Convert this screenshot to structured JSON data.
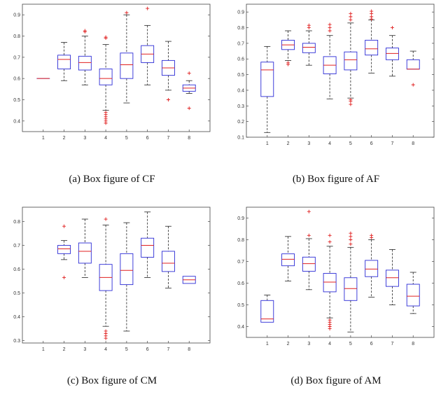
{
  "figure": {
    "captions": [
      "(a) Box figure of CF",
      "(b) Box figure of AF",
      "(c) Box figure of CM",
      "(d) Box figure of AM"
    ]
  },
  "colors": {
    "box": "#2b2bd6",
    "median": "#e02020",
    "outlier": "#e02020",
    "whisker": "#222222",
    "frame": "#444444"
  },
  "chart_data": [
    {
      "type": "box",
      "title": "(a) Box figure of CF",
      "categories": [
        "1",
        "2",
        "3",
        "4",
        "5",
        "6",
        "7",
        "8"
      ],
      "ylim": [
        0.35,
        0.95
      ],
      "yticks": [
        "0.4",
        "0.5",
        "0.6",
        "0.7",
        "0.8",
        "0.9"
      ],
      "boxes": [
        {
          "min": 0.6,
          "q1": 0.6,
          "median": 0.6,
          "q3": 0.6,
          "max": 0.6,
          "outliers": []
        },
        {
          "min": 0.59,
          "q1": 0.645,
          "median": 0.69,
          "q3": 0.71,
          "max": 0.77,
          "outliers": []
        },
        {
          "min": 0.57,
          "q1": 0.64,
          "median": 0.675,
          "q3": 0.705,
          "max": 0.8,
          "outliers": [
            0.82,
            0.825
          ]
        },
        {
          "min": 0.45,
          "q1": 0.57,
          "median": 0.6,
          "q3": 0.645,
          "max": 0.76,
          "outliers": [
            0.79,
            0.795,
            0.44,
            0.43,
            0.42,
            0.41,
            0.4,
            0.39
          ]
        },
        {
          "min": 0.485,
          "q1": 0.6,
          "median": 0.665,
          "q3": 0.72,
          "max": 0.9,
          "outliers": [
            0.91
          ]
        },
        {
          "min": 0.57,
          "q1": 0.675,
          "median": 0.715,
          "q3": 0.755,
          "max": 0.85,
          "outliers": [
            0.93
          ]
        },
        {
          "min": 0.545,
          "q1": 0.615,
          "median": 0.65,
          "q3": 0.685,
          "max": 0.775,
          "outliers": [
            0.5
          ]
        },
        {
          "min": 0.53,
          "q1": 0.54,
          "median": 0.555,
          "q3": 0.57,
          "max": 0.59,
          "outliers": [
            0.625,
            0.46
          ]
        }
      ]
    },
    {
      "type": "box",
      "title": "(b) Box figure of AF",
      "categories": [
        "1",
        "2",
        "3",
        "4",
        "5",
        "6",
        "7",
        "8"
      ],
      "ylim": [
        0.1,
        0.95
      ],
      "yticks": [
        "0.1",
        "0.2",
        "0.3",
        "0.4",
        "0.5",
        "0.6",
        "0.7",
        "0.8",
        "0.9"
      ],
      "boxes": [
        {
          "min": 0.13,
          "q1": 0.36,
          "median": 0.53,
          "q3": 0.58,
          "max": 0.68,
          "outliers": []
        },
        {
          "min": 0.59,
          "q1": 0.66,
          "median": 0.69,
          "q3": 0.72,
          "max": 0.78,
          "outliers": [
            0.575,
            0.565
          ]
        },
        {
          "min": 0.56,
          "q1": 0.64,
          "median": 0.675,
          "q3": 0.7,
          "max": 0.78,
          "outliers": [
            0.8,
            0.815
          ]
        },
        {
          "min": 0.345,
          "q1": 0.505,
          "median": 0.56,
          "q3": 0.615,
          "max": 0.75,
          "outliers": [
            0.78,
            0.8,
            0.82
          ]
        },
        {
          "min": 0.35,
          "q1": 0.53,
          "median": 0.595,
          "q3": 0.645,
          "max": 0.83,
          "outliers": [
            0.85,
            0.87,
            0.89,
            0.34,
            0.33,
            0.31
          ]
        },
        {
          "min": 0.51,
          "q1": 0.625,
          "median": 0.665,
          "q3": 0.72,
          "max": 0.85,
          "outliers": [
            0.855,
            0.87,
            0.89,
            0.905
          ]
        },
        {
          "min": 0.49,
          "q1": 0.595,
          "median": 0.635,
          "q3": 0.67,
          "max": 0.75,
          "outliers": [
            0.8
          ]
        },
        {
          "min": 0.535,
          "q1": 0.535,
          "median": 0.535,
          "q3": 0.595,
          "max": 0.65,
          "outliers": [
            0.435
          ]
        }
      ]
    },
    {
      "type": "box",
      "title": "(c) Box figure of CM",
      "categories": [
        "1",
        "2",
        "3",
        "4",
        "5",
        "6",
        "7",
        "8"
      ],
      "ylim": [
        0.29,
        0.86
      ],
      "yticks": [
        "0.3",
        "0.4",
        "0.5",
        "0.6",
        "0.7",
        "0.8"
      ],
      "boxes": [
        {
          "min": null,
          "q1": null,
          "median": null,
          "q3": null,
          "max": null,
          "outliers": []
        },
        {
          "min": 0.64,
          "q1": 0.665,
          "median": 0.685,
          "q3": 0.7,
          "max": 0.72,
          "outliers": [
            0.78,
            0.565
          ]
        },
        {
          "min": 0.565,
          "q1": 0.625,
          "median": 0.675,
          "q3": 0.71,
          "max": 0.81,
          "outliers": []
        },
        {
          "min": 0.36,
          "q1": 0.51,
          "median": 0.565,
          "q3": 0.62,
          "max": 0.785,
          "outliers": [
            0.81,
            0.34,
            0.33,
            0.32,
            0.31
          ]
        },
        {
          "min": 0.34,
          "q1": 0.535,
          "median": 0.595,
          "q3": 0.665,
          "max": 0.795,
          "outliers": []
        },
        {
          "min": 0.565,
          "q1": 0.65,
          "median": 0.7,
          "q3": 0.73,
          "max": 0.84,
          "outliers": []
        },
        {
          "min": 0.52,
          "q1": 0.59,
          "median": 0.625,
          "q3": 0.675,
          "max": 0.78,
          "outliers": []
        },
        {
          "min": 0.54,
          "q1": 0.54,
          "median": 0.555,
          "q3": 0.57,
          "max": 0.57,
          "outliers": []
        }
      ]
    },
    {
      "type": "box",
      "title": "(d) Box figure of AM",
      "categories": [
        "1",
        "2",
        "3",
        "4",
        "5",
        "6",
        "7",
        "8"
      ],
      "ylim": [
        0.35,
        0.95
      ],
      "yticks": [
        "0.4",
        "0.5",
        "0.6",
        "0.7",
        "0.8",
        "0.9"
      ],
      "boxes": [
        {
          "min": 0.42,
          "q1": 0.42,
          "median": 0.435,
          "q3": 0.52,
          "max": 0.545,
          "outliers": []
        },
        {
          "min": 0.61,
          "q1": 0.68,
          "median": 0.71,
          "q3": 0.735,
          "max": 0.815,
          "outliers": []
        },
        {
          "min": 0.57,
          "q1": 0.655,
          "median": 0.69,
          "q3": 0.72,
          "max": 0.805,
          "outliers": [
            0.82,
            0.93
          ]
        },
        {
          "min": 0.44,
          "q1": 0.56,
          "median": 0.605,
          "q3": 0.645,
          "max": 0.77,
          "outliers": [
            0.79,
            0.82,
            0.43,
            0.42,
            0.41,
            0.4,
            0.39
          ]
        },
        {
          "min": 0.375,
          "q1": 0.52,
          "median": 0.575,
          "q3": 0.625,
          "max": 0.765,
          "outliers": [
            0.78,
            0.8,
            0.815,
            0.83
          ]
        },
        {
          "min": 0.535,
          "q1": 0.63,
          "median": 0.665,
          "q3": 0.705,
          "max": 0.8,
          "outliers": [
            0.81,
            0.82
          ]
        },
        {
          "min": 0.5,
          "q1": 0.585,
          "median": 0.625,
          "q3": 0.66,
          "max": 0.755,
          "outliers": []
        },
        {
          "min": 0.46,
          "q1": 0.495,
          "median": 0.54,
          "q3": 0.595,
          "max": 0.65,
          "outliers": []
        }
      ]
    }
  ]
}
